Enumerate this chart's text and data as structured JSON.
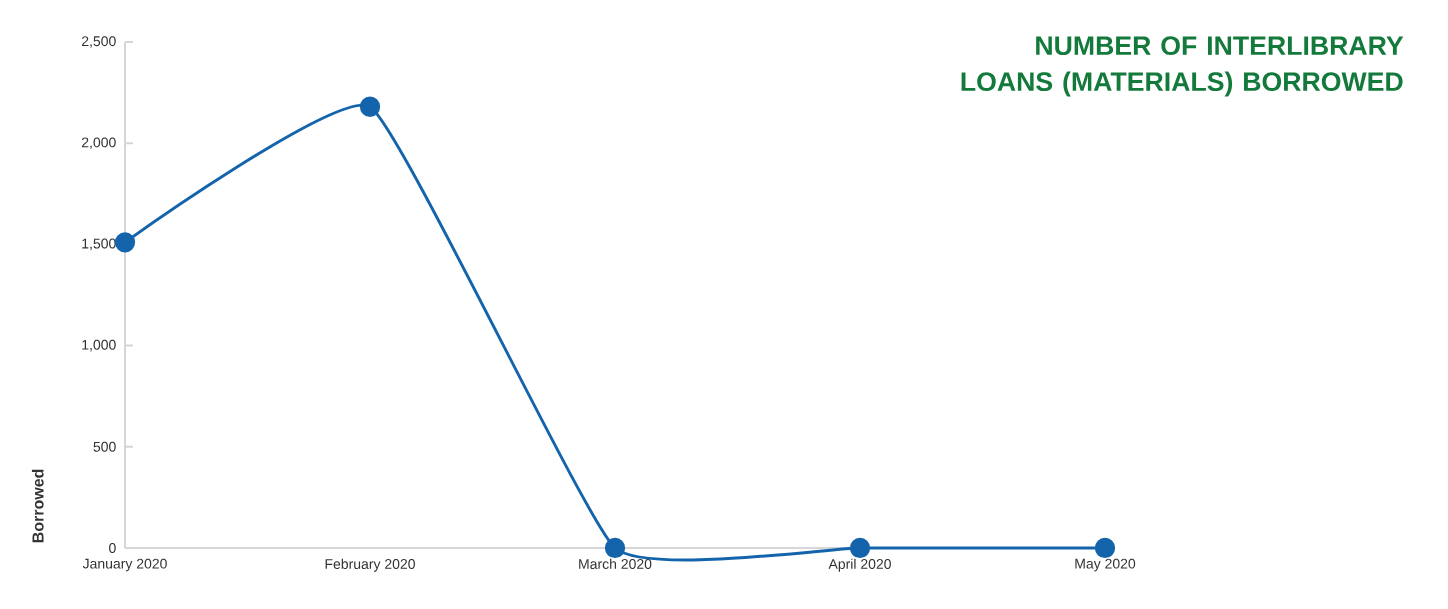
{
  "chart_data": {
    "type": "line",
    "title": "NUMBER OF INTERLIBRARY LOANS (MATERIALS) BORROWED",
    "ylabel": "Borrowed",
    "categories": [
      "January 2020",
      "February 2020",
      "March 2020",
      "April 2020",
      "May 2020"
    ],
    "series": [
      {
        "color": "#1464ac",
        "values": [
          1510,
          2180,
          0,
          0,
          0
        ]
      }
    ],
    "ylim": [
      0,
      2500
    ],
    "yticks": [
      0,
      500,
      {
        "value": 1000,
        "label": "1,000"
      },
      {
        "value": 1500,
        "label": "1,500"
      },
      {
        "value": 2000,
        "label": "2,000"
      },
      {
        "value": 2500,
        "label": "2,500"
      }
    ],
    "marker": "circle",
    "line_style": "solid"
  }
}
